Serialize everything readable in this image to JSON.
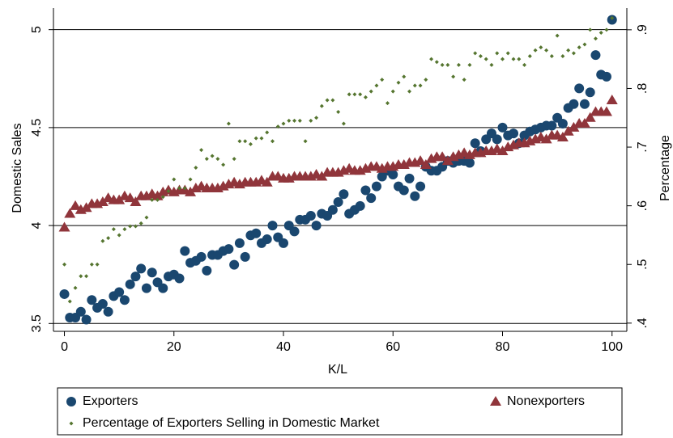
{
  "chart_data": {
    "type": "scatter",
    "xlabel": "K/L",
    "ylabel": "Domestic Sales",
    "y2label": "Percentage",
    "x": [
      0,
      1,
      2,
      3,
      4,
      5,
      6,
      7,
      8,
      9,
      10,
      11,
      12,
      13,
      14,
      15,
      16,
      17,
      18,
      19,
      20,
      21,
      22,
      23,
      24,
      25,
      26,
      27,
      28,
      29,
      30,
      31,
      32,
      33,
      34,
      35,
      36,
      37,
      38,
      39,
      40,
      41,
      42,
      43,
      44,
      45,
      46,
      47,
      48,
      49,
      50,
      51,
      52,
      53,
      54,
      55,
      56,
      57,
      58,
      59,
      60,
      61,
      62,
      63,
      64,
      65,
      66,
      67,
      68,
      69,
      70,
      71,
      72,
      73,
      74,
      75,
      76,
      77,
      78,
      79,
      80,
      81,
      82,
      83,
      84,
      85,
      86,
      87,
      88,
      89,
      90,
      91,
      92,
      93,
      94,
      95,
      96,
      97,
      98,
      99,
      100
    ],
    "series": [
      {
        "name": "Exporters",
        "color": "#1a476f",
        "marker": "circle",
        "values": [
          3.65,
          3.53,
          3.53,
          3.56,
          3.52,
          3.62,
          3.58,
          3.6,
          3.56,
          3.64,
          3.66,
          3.62,
          3.7,
          3.74,
          3.78,
          3.68,
          3.76,
          3.71,
          3.68,
          3.74,
          3.75,
          3.73,
          3.87,
          3.81,
          3.82,
          3.84,
          3.77,
          3.85,
          3.85,
          3.87,
          3.88,
          3.8,
          3.91,
          3.84,
          3.95,
          3.96,
          3.91,
          3.93,
          4.0,
          3.94,
          3.91,
          4.0,
          3.97,
          4.03,
          4.03,
          4.05,
          4.0,
          4.06,
          4.05,
          4.08,
          4.12,
          4.16,
          4.06,
          4.08,
          4.1,
          4.18,
          4.14,
          4.2,
          4.25,
          4.28,
          4.26,
          4.2,
          4.18,
          4.24,
          4.15,
          4.2,
          4.3,
          4.28,
          4.28,
          4.3,
          4.33,
          4.32,
          4.33,
          4.33,
          4.32,
          4.42,
          4.38,
          4.44,
          4.47,
          4.44,
          4.5,
          4.46,
          4.47,
          4.42,
          4.46,
          4.48,
          4.49,
          4.5,
          4.51,
          4.51,
          4.55,
          4.52,
          4.6,
          4.62,
          4.7,
          4.62,
          4.68,
          4.87,
          4.77,
          4.76,
          5.05
        ]
      },
      {
        "name": "Nonexporters",
        "color": "#90353b",
        "marker": "triangle",
        "values": [
          3.99,
          4.06,
          4.1,
          4.08,
          4.09,
          4.11,
          4.11,
          4.12,
          4.14,
          4.13,
          4.13,
          4.15,
          4.14,
          4.12,
          4.15,
          4.15,
          4.16,
          4.15,
          4.17,
          4.18,
          4.17,
          4.18,
          4.18,
          4.17,
          4.19,
          4.2,
          4.19,
          4.19,
          4.19,
          4.2,
          4.21,
          4.22,
          4.21,
          4.22,
          4.22,
          4.22,
          4.23,
          4.22,
          4.25,
          4.25,
          4.24,
          4.24,
          4.25,
          4.25,
          4.25,
          4.25,
          4.26,
          4.25,
          4.27,
          4.27,
          4.27,
          4.28,
          4.29,
          4.28,
          4.28,
          4.29,
          4.3,
          4.3,
          4.29,
          4.3,
          4.3,
          4.31,
          4.31,
          4.32,
          4.32,
          4.33,
          4.31,
          4.34,
          4.35,
          4.35,
          4.33,
          4.35,
          4.36,
          4.37,
          4.36,
          4.37,
          4.37,
          4.38,
          4.38,
          4.39,
          4.38,
          4.4,
          4.41,
          4.42,
          4.42,
          4.43,
          4.44,
          4.45,
          4.44,
          4.46,
          4.46,
          4.45,
          4.48,
          4.5,
          4.52,
          4.52,
          4.55,
          4.58,
          4.58,
          4.58,
          4.64
        ]
      },
      {
        "name": "Percentage of Exporters Selling in Domestic Market",
        "color": "#55752f",
        "marker": "diamond",
        "axis": "y2",
        "values": [
          0.5,
          0.437,
          0.46,
          0.48,
          0.48,
          0.5,
          0.5,
          0.54,
          0.545,
          0.56,
          0.55,
          0.56,
          0.565,
          0.565,
          0.57,
          0.58,
          0.61,
          0.61,
          0.615,
          0.625,
          0.645,
          0.63,
          0.63,
          0.645,
          0.665,
          0.695,
          0.68,
          0.685,
          0.68,
          0.67,
          0.74,
          0.68,
          0.71,
          0.71,
          0.705,
          0.715,
          0.715,
          0.725,
          0.71,
          0.735,
          0.74,
          0.745,
          0.745,
          0.745,
          0.71,
          0.745,
          0.75,
          0.77,
          0.78,
          0.78,
          0.76,
          0.74,
          0.79,
          0.79,
          0.79,
          0.785,
          0.795,
          0.805,
          0.815,
          0.775,
          0.795,
          0.81,
          0.82,
          0.795,
          0.805,
          0.805,
          0.815,
          0.85,
          0.845,
          0.84,
          0.84,
          0.82,
          0.84,
          0.815,
          0.84,
          0.86,
          0.855,
          0.85,
          0.84,
          0.86,
          0.85,
          0.86,
          0.85,
          0.85,
          0.84,
          0.855,
          0.865,
          0.87,
          0.865,
          0.855,
          0.89,
          0.855,
          0.865,
          0.86,
          0.87,
          0.875,
          0.9,
          0.885,
          0.895,
          0.9,
          0.92
        ]
      }
    ],
    "xlim": [
      -2,
      102.7
    ],
    "xticks": [
      0,
      20,
      40,
      60,
      80,
      100
    ],
    "ylim": [
      3.46,
      5.11
    ],
    "yticks": [
      3.5,
      4,
      4.5,
      5
    ],
    "y2lim": [
      0.386,
      0.937
    ],
    "y2ticks": [
      {
        "value": 0.4,
        "label": ".4"
      },
      {
        "value": 0.5,
        "label": ".5"
      },
      {
        "value": 0.6,
        "label": ".6"
      },
      {
        "value": 0.7,
        "label": ".7"
      },
      {
        "value": 0.8,
        "label": ".8"
      },
      {
        "value": 0.9,
        "label": ".9"
      }
    ],
    "grid": true
  }
}
